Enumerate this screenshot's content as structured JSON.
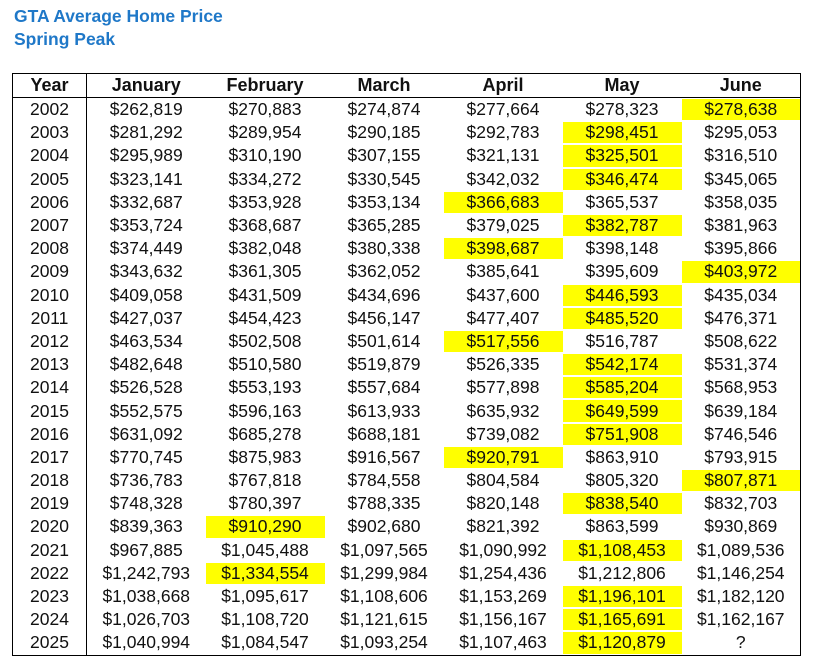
{
  "title": "GTA Average Home Price",
  "subtitle": "Spring Peak",
  "colors": {
    "title": "#1f78c8",
    "highlight": "#ffff00"
  },
  "table": {
    "headers": [
      "Year",
      "January",
      "February",
      "March",
      "April",
      "May",
      "June"
    ],
    "rows": [
      {
        "year": "2002",
        "values": [
          "$262,819",
          "$270,883",
          "$274,874",
          "$277,664",
          "$278,323",
          "$278,638"
        ],
        "peak": "June"
      },
      {
        "year": "2003",
        "values": [
          "$281,292",
          "$289,954",
          "$290,185",
          "$292,783",
          "$298,451",
          "$295,053"
        ],
        "peak": "May"
      },
      {
        "year": "2004",
        "values": [
          "$295,989",
          "$310,190",
          "$307,155",
          "$321,131",
          "$325,501",
          "$316,510"
        ],
        "peak": "May"
      },
      {
        "year": "2005",
        "values": [
          "$323,141",
          "$334,272",
          "$330,545",
          "$342,032",
          "$346,474",
          "$345,065"
        ],
        "peak": "May"
      },
      {
        "year": "2006",
        "values": [
          "$332,687",
          "$353,928",
          "$353,134",
          "$366,683",
          "$365,537",
          "$358,035"
        ],
        "peak": "April"
      },
      {
        "year": "2007",
        "values": [
          "$353,724",
          "$368,687",
          "$365,285",
          "$379,025",
          "$382,787",
          "$381,963"
        ],
        "peak": "May"
      },
      {
        "year": "2008",
        "values": [
          "$374,449",
          "$382,048",
          "$380,338",
          "$398,687",
          "$398,148",
          "$395,866"
        ],
        "peak": "April"
      },
      {
        "year": "2009",
        "values": [
          "$343,632",
          "$361,305",
          "$362,052",
          "$385,641",
          "$395,609",
          "$403,972"
        ],
        "peak": "June"
      },
      {
        "year": "2010",
        "values": [
          "$409,058",
          "$431,509",
          "$434,696",
          "$437,600",
          "$446,593",
          "$435,034"
        ],
        "peak": "May"
      },
      {
        "year": "2011",
        "values": [
          "$427,037",
          "$454,423",
          "$456,147",
          "$477,407",
          "$485,520",
          "$476,371"
        ],
        "peak": "May"
      },
      {
        "year": "2012",
        "values": [
          "$463,534",
          "$502,508",
          "$501,614",
          "$517,556",
          "$516,787",
          "$508,622"
        ],
        "peak": "April"
      },
      {
        "year": "2013",
        "values": [
          "$482,648",
          "$510,580",
          "$519,879",
          "$526,335",
          "$542,174",
          "$531,374"
        ],
        "peak": "May"
      },
      {
        "year": "2014",
        "values": [
          "$526,528",
          "$553,193",
          "$557,684",
          "$577,898",
          "$585,204",
          "$568,953"
        ],
        "peak": "May"
      },
      {
        "year": "2015",
        "values": [
          "$552,575",
          "$596,163",
          "$613,933",
          "$635,932",
          "$649,599",
          "$639,184"
        ],
        "peak": "May"
      },
      {
        "year": "2016",
        "values": [
          "$631,092",
          "$685,278",
          "$688,181",
          "$739,082",
          "$751,908",
          "$746,546"
        ],
        "peak": "May"
      },
      {
        "year": "2017",
        "values": [
          "$770,745",
          "$875,983",
          "$916,567",
          "$920,791",
          "$863,910",
          "$793,915"
        ],
        "peak": "April"
      },
      {
        "year": "2018",
        "values": [
          "$736,783",
          "$767,818",
          "$784,558",
          "$804,584",
          "$805,320",
          "$807,871"
        ],
        "peak": "June"
      },
      {
        "year": "2019",
        "values": [
          "$748,328",
          "$780,397",
          "$788,335",
          "$820,148",
          "$838,540",
          "$832,703"
        ],
        "peak": "May"
      },
      {
        "year": "2020",
        "values": [
          "$839,363",
          "$910,290",
          "$902,680",
          "$821,392",
          "$863,599",
          "$930,869"
        ],
        "peak": "February"
      },
      {
        "year": "2021",
        "values": [
          "$967,885",
          "$1,045,488",
          "$1,097,565",
          "$1,090,992",
          "$1,108,453",
          "$1,089,536"
        ],
        "peak": "May"
      },
      {
        "year": "2022",
        "values": [
          "$1,242,793",
          "$1,334,554",
          "$1,299,984",
          "$1,254,436",
          "$1,212,806",
          "$1,146,254"
        ],
        "peak": "February"
      },
      {
        "year": "2023",
        "values": [
          "$1,038,668",
          "$1,095,617",
          "$1,108,606",
          "$1,153,269",
          "$1,196,101",
          "$1,182,120"
        ],
        "peak": "May"
      },
      {
        "year": "2024",
        "values": [
          "$1,026,703",
          "$1,108,720",
          "$1,121,615",
          "$1,156,167",
          "$1,165,691",
          "$1,162,167"
        ],
        "peak": "May"
      },
      {
        "year": "2025",
        "values": [
          "$1,040,994",
          "$1,084,547",
          "$1,093,254",
          "$1,107,463",
          "$1,120,879",
          "?"
        ],
        "peak": "May"
      }
    ]
  }
}
